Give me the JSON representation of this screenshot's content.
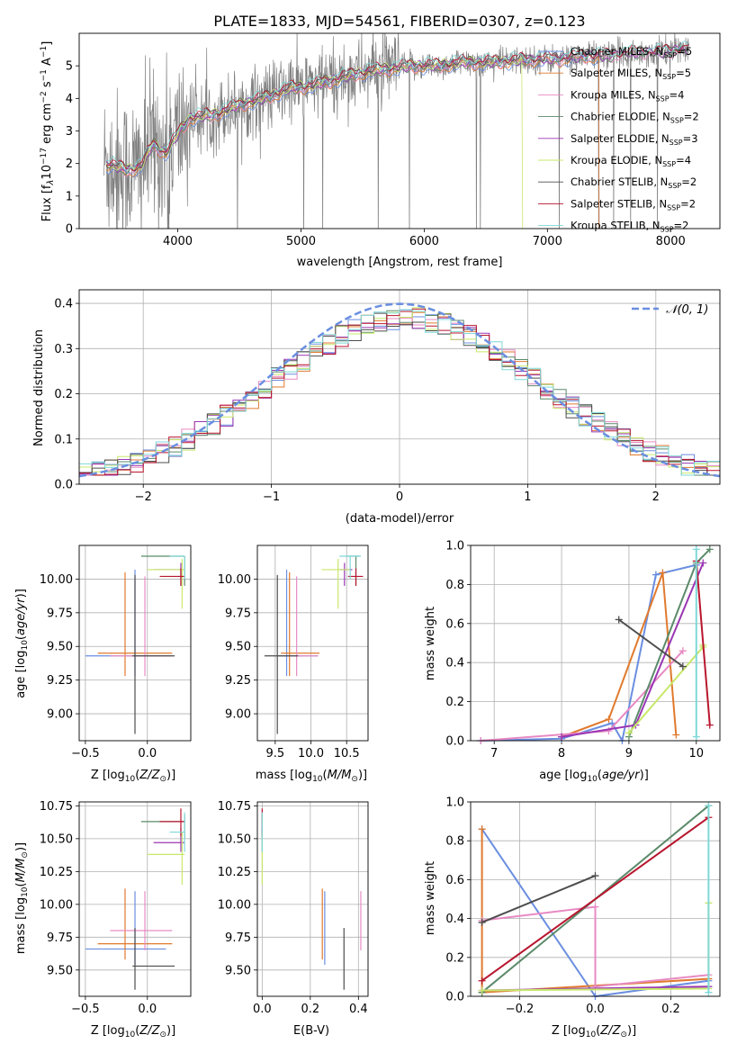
{
  "colors": {
    "Chabrier MILES": "#6a8ee0",
    "Salpeter MILES": "#e07a2e",
    "Kroupa MILES": "#e78ac3",
    "Chabrier ELODIE": "#5b8a6a",
    "Salpeter ELODIE": "#9b36b3",
    "Kroupa ELODIE": "#c7e86a",
    "Chabrier STELIB": "#4d4d4d",
    "Salpeter STELIB": "#b8152e",
    "Kroupa STELIB": "#7fd8d8",
    "data": "#808080",
    "gaussian": "#6a8ee0"
  },
  "chart_data": [
    {
      "id": "spectrum",
      "type": "line",
      "title": "PLATE=1833, MJD=54561, FIBERID=0307, z=0.123",
      "xlabel": "wavelength [Angstrom, rest frame]",
      "ylabel": "Flux [f",
      "xlim": [
        3200,
        8400
      ],
      "ylim": [
        0,
        6
      ],
      "xticks": [
        "4000",
        "5000",
        "6000",
        "7000",
        "8000"
      ],
      "yticks": [
        "0",
        "1",
        "2",
        "3",
        "4",
        "5"
      ],
      "legend_position": "upper-right",
      "legend": [
        {
          "name": "Chabrier MILES",
          "n": "5"
        },
        {
          "name": "Salpeter MILES",
          "n": "5"
        },
        {
          "name": "Kroupa MILES",
          "n": "4"
        },
        {
          "name": "Chabrier ELODIE",
          "n": "2"
        },
        {
          "name": "Salpeter ELODIE",
          "n": "3"
        },
        {
          "name": "Kroupa ELODIE",
          "n": "4"
        },
        {
          "name": "Chabrier STELIB",
          "n": "2"
        },
        {
          "name": "Salpeter STELIB",
          "n": "2"
        },
        {
          "name": "Kroupa STELIB",
          "n": "2"
        }
      ],
      "continuum": [
        [
          3400,
          2.0
        ],
        [
          3500,
          1.9
        ],
        [
          3600,
          1.8
        ],
        [
          3700,
          1.9
        ],
        [
          3800,
          2.6
        ],
        [
          3900,
          2.3
        ],
        [
          4000,
          2.9
        ],
        [
          4100,
          3.4
        ],
        [
          4300,
          3.5
        ],
        [
          4500,
          3.8
        ],
        [
          4700,
          4.0
        ],
        [
          4900,
          4.3
        ],
        [
          5100,
          4.4
        ],
        [
          5300,
          4.6
        ],
        [
          5500,
          4.8
        ],
        [
          5700,
          4.9
        ],
        [
          5900,
          5.0
        ],
        [
          6100,
          5.0
        ],
        [
          6300,
          5.1
        ],
        [
          6500,
          5.1
        ],
        [
          6700,
          5.15
        ],
        [
          6900,
          5.2
        ],
        [
          7100,
          5.2
        ],
        [
          7300,
          5.3
        ],
        [
          7500,
          5.3
        ],
        [
          7700,
          5.4
        ],
        [
          7900,
          5.4
        ],
        [
          8100,
          5.5
        ]
      ],
      "grid": false
    },
    {
      "id": "residuals",
      "type": "histogram",
      "xlabel": "(data-model)/error",
      "ylabel": "Normed distribution",
      "xlim": [
        -2.5,
        2.5
      ],
      "ylim": [
        0,
        0.43
      ],
      "xticks": [
        "−2",
        "−1",
        "0",
        "1",
        "2"
      ],
      "yticks": [
        "0.0",
        "0.1",
        "0.2",
        "0.3",
        "0.4"
      ],
      "legend": "𝒩(0, 1)",
      "legend_position": "upper-right",
      "grid": true,
      "bin_width": 0.1
    },
    {
      "id": "age_vs_Z",
      "type": "errorbar",
      "xlabel": "Z [log",
      "ylabel": "age  [log",
      "xlim": [
        -0.55,
        0.35
      ],
      "ylim": [
        8.8,
        10.25
      ],
      "xticks": [
        "−0.5",
        "0.0"
      ],
      "yticks": [
        "9.00",
        "9.25",
        "9.50",
        "9.75",
        "10.00"
      ],
      "grid": true
    },
    {
      "id": "age_vs_mass",
      "type": "errorbar",
      "xlabel": "mass [log",
      "ylabel": "",
      "xlim": [
        9.25,
        10.8
      ],
      "ylim": [
        8.8,
        10.25
      ],
      "xticks": [
        "9.5",
        "10.0",
        "10.5"
      ],
      "yticks": [
        "9.00",
        "9.25",
        "9.50",
        "9.75",
        "10.00"
      ],
      "grid": true
    },
    {
      "id": "weight_vs_age",
      "type": "line",
      "xlabel": "age  [log",
      "ylabel": "mass weight",
      "xlim": [
        6.65,
        10.35
      ],
      "ylim": [
        0,
        1
      ],
      "xticks": [
        "7",
        "8",
        "9",
        "10"
      ],
      "yticks": [
        "0.0",
        "0.2",
        "0.4",
        "0.6",
        "0.8",
        "1.0"
      ],
      "grid": true,
      "series": [
        {
          "name": "Chabrier MILES",
          "x": [
            6.8,
            8.0,
            8.75,
            8.9,
            9.4,
            10.0
          ],
          "y": [
            0.0,
            0.01,
            0.09,
            0.0,
            0.85,
            0.9
          ]
        },
        {
          "name": "Salpeter MILES",
          "x": [
            8.0,
            8.7,
            9.5,
            9.7
          ],
          "y": [
            0.02,
            0.11,
            0.86,
            0.03
          ]
        },
        {
          "name": "Kroupa MILES",
          "x": [
            6.8,
            8.7,
            9.8
          ],
          "y": [
            0.0,
            0.05,
            0.46
          ]
        },
        {
          "name": "Chabrier ELODIE",
          "x": [
            9.0,
            10.0,
            10.2
          ],
          "y": [
            0.02,
            0.91,
            0.98
          ]
        },
        {
          "name": "Salpeter ELODIE",
          "x": [
            8.0,
            9.1,
            10.1
          ],
          "y": [
            0.02,
            0.08,
            0.91
          ]
        },
        {
          "name": "Kroupa ELODIE",
          "x": [
            9.0,
            10.1,
            10.1
          ],
          "y": [
            0.04,
            0.48,
            0.49
          ]
        },
        {
          "name": "Chabrier STELIB",
          "x": [
            8.85,
            9.8
          ],
          "y": [
            0.62,
            0.38
          ]
        },
        {
          "name": "Salpeter STELIB",
          "x": [
            10.0,
            10.2
          ],
          "y": [
            0.92,
            0.08
          ]
        },
        {
          "name": "Kroupa STELIB",
          "x": [
            10.0,
            10.0
          ],
          "y": [
            0.98,
            0.02
          ]
        }
      ]
    },
    {
      "id": "mass_vs_Z",
      "type": "errorbar",
      "xlabel": "Z [log",
      "ylabel": "mass [log",
      "xlim": [
        -0.55,
        0.35
      ],
      "ylim": [
        9.3,
        10.78
      ],
      "xticks": [
        "−0.5",
        "0.0"
      ],
      "yticks": [
        "9.50",
        "9.75",
        "10.00",
        "10.25",
        "10.50",
        "10.75"
      ],
      "grid": true
    },
    {
      "id": "mass_vs_ebv",
      "type": "errorbar",
      "xlabel": "E(B-V)",
      "ylabel": "",
      "xlim": [
        -0.02,
        0.44
      ],
      "ylim": [
        9.3,
        10.78
      ],
      "xticks": [
        "0.0",
        "0.2",
        "0.4"
      ],
      "yticks": [
        "9.50",
        "9.75",
        "10.00",
        "10.25",
        "10.50",
        "10.75"
      ],
      "grid": true
    },
    {
      "id": "weight_vs_Z",
      "type": "line",
      "xlabel": "Z [log",
      "ylabel": "mass weight",
      "xlim": [
        -0.33,
        0.33
      ],
      "ylim": [
        0,
        1
      ],
      "xticks": [
        "−0.2",
        "0.0",
        "0.2"
      ],
      "yticks": [
        "0.0",
        "0.2",
        "0.4",
        "0.6",
        "0.8",
        "1.0"
      ],
      "grid": true,
      "series": [
        {
          "name": "Chabrier MILES",
          "x": [
            -0.3,
            0.0,
            0.3
          ],
          "y": [
            0.86,
            0.0,
            0.08
          ]
        },
        {
          "name": "Salpeter MILES",
          "x": [
            -0.3,
            -0.3,
            0.3
          ],
          "y": [
            0.86,
            0.02,
            0.09
          ]
        },
        {
          "name": "Kroupa MILES",
          "x": [
            -0.3,
            0.0,
            0.0,
            0.3
          ],
          "y": [
            0.39,
            0.46,
            0.05,
            0.11
          ]
        },
        {
          "name": "Chabrier ELODIE",
          "x": [
            -0.3,
            0.3
          ],
          "y": [
            0.02,
            0.98
          ]
        },
        {
          "name": "Salpeter ELODIE",
          "x": [
            -0.3,
            0.3
          ],
          "y": [
            0.03,
            0.05
          ]
        },
        {
          "name": "Kroupa ELODIE",
          "x": [
            -0.3,
            0.3,
            0.3
          ],
          "y": [
            0.03,
            0.04,
            0.48
          ]
        },
        {
          "name": "Chabrier STELIB",
          "x": [
            -0.3,
            0.0
          ],
          "y": [
            0.38,
            0.62
          ]
        },
        {
          "name": "Salpeter STELIB",
          "x": [
            -0.3,
            0.3
          ],
          "y": [
            0.08,
            0.92
          ]
        },
        {
          "name": "Kroupa STELIB",
          "x": [
            0.3,
            0.3
          ],
          "y": [
            0.98,
            0.02
          ]
        }
      ]
    }
  ],
  "estimates": [
    {
      "name": "Chabrier MILES",
      "Z": [
        -0.1,
        -0.5,
        0.15
      ],
      "age": [
        9.43,
        9.28,
        10.07
      ],
      "mass": [
        9.66,
        9.54,
        10.1
      ],
      "ebv": 0.26
    },
    {
      "name": "Salpeter MILES",
      "Z": [
        -0.18,
        -0.4,
        0.2
      ],
      "age": [
        9.45,
        9.28,
        10.05
      ],
      "mass": [
        9.7,
        9.58,
        10.12
      ],
      "ebv": 0.25
    },
    {
      "name": "Kroupa MILES",
      "Z": [
        -0.02,
        -0.3,
        0.2
      ],
      "age": [
        9.43,
        9.28,
        10.02
      ],
      "mass": [
        9.8,
        9.65,
        10.1
      ],
      "ebv": 0.41
    },
    {
      "name": "Chabrier ELODIE",
      "Z": [
        0.3,
        -0.05,
        0.3
      ],
      "age": [
        10.17,
        9.95,
        10.17
      ],
      "mass": [
        10.63,
        10.5,
        10.68
      ],
      "ebv": 0.0
    },
    {
      "name": "Salpeter ELODIE",
      "Z": [
        0.27,
        0.05,
        0.3
      ],
      "age": [
        10.07,
        9.95,
        10.12
      ],
      "mass": [
        10.47,
        10.4,
        10.58
      ],
      "ebv": 0.0
    },
    {
      "name": "Kroupa ELODIE",
      "Z": [
        0.28,
        0.0,
        0.3
      ],
      "age": [
        10.07,
        9.78,
        10.15
      ],
      "mass": [
        10.38,
        10.15,
        10.55
      ],
      "ebv": 0.0
    },
    {
      "name": "Chabrier STELIB",
      "Z": [
        -0.1,
        -0.12,
        0.22
      ],
      "age": [
        9.43,
        8.85,
        10.03
      ],
      "mass": [
        9.53,
        9.35,
        9.82
      ],
      "ebv": 0.34
    },
    {
      "name": "Salpeter STELIB",
      "Z": [
        0.27,
        0.1,
        0.3
      ],
      "age": [
        10.02,
        9.95,
        10.08
      ],
      "mass": [
        10.63,
        10.52,
        10.73
      ],
      "ebv": 0.0
    },
    {
      "name": "Kroupa STELIB",
      "Z": [
        0.3,
        0.18,
        0.3
      ],
      "age": [
        10.17,
        10.0,
        10.17
      ],
      "mass": [
        10.55,
        10.4,
        10.7
      ],
      "ebv": 0.0
    }
  ]
}
